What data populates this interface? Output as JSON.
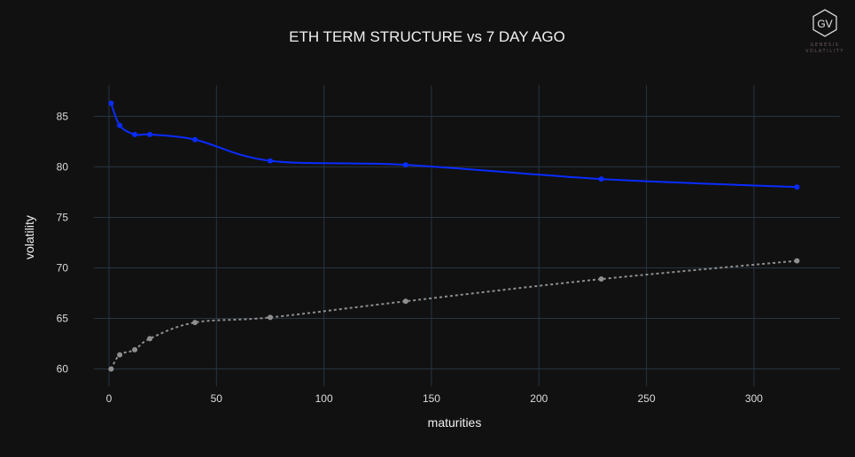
{
  "chart_data": {
    "type": "line",
    "title": "ETH TERM STRUCTURE vs 7 DAY AGO",
    "xlabel": "maturities",
    "ylabel": "volatility",
    "xlim": [
      -7,
      340
    ],
    "ylim": [
      58.3,
      88.1
    ],
    "xticks": [
      0,
      50,
      100,
      150,
      200,
      250,
      300
    ],
    "yticks": [
      60,
      65,
      70,
      75,
      80,
      85
    ],
    "grid": true,
    "series": [
      {
        "color": "#0a2cff",
        "dash": "solid",
        "x": [
          1,
          5,
          12,
          19,
          40,
          75,
          138,
          229,
          320
        ],
        "y": [
          86.3,
          84.1,
          83.2,
          83.2,
          82.7,
          80.6,
          80.2,
          78.8,
          78.0
        ]
      },
      {
        "color": "#8f8f8f",
        "dash": "dotted",
        "x": [
          1,
          5,
          12,
          19,
          40,
          75,
          138,
          229,
          320
        ],
        "y": [
          60.0,
          61.4,
          61.9,
          63.0,
          64.6,
          65.1,
          66.7,
          68.9,
          70.7
        ]
      }
    ]
  },
  "logo": {
    "mark": "GV",
    "line1": "GENESIS",
    "line2": "VOLATILITY"
  }
}
